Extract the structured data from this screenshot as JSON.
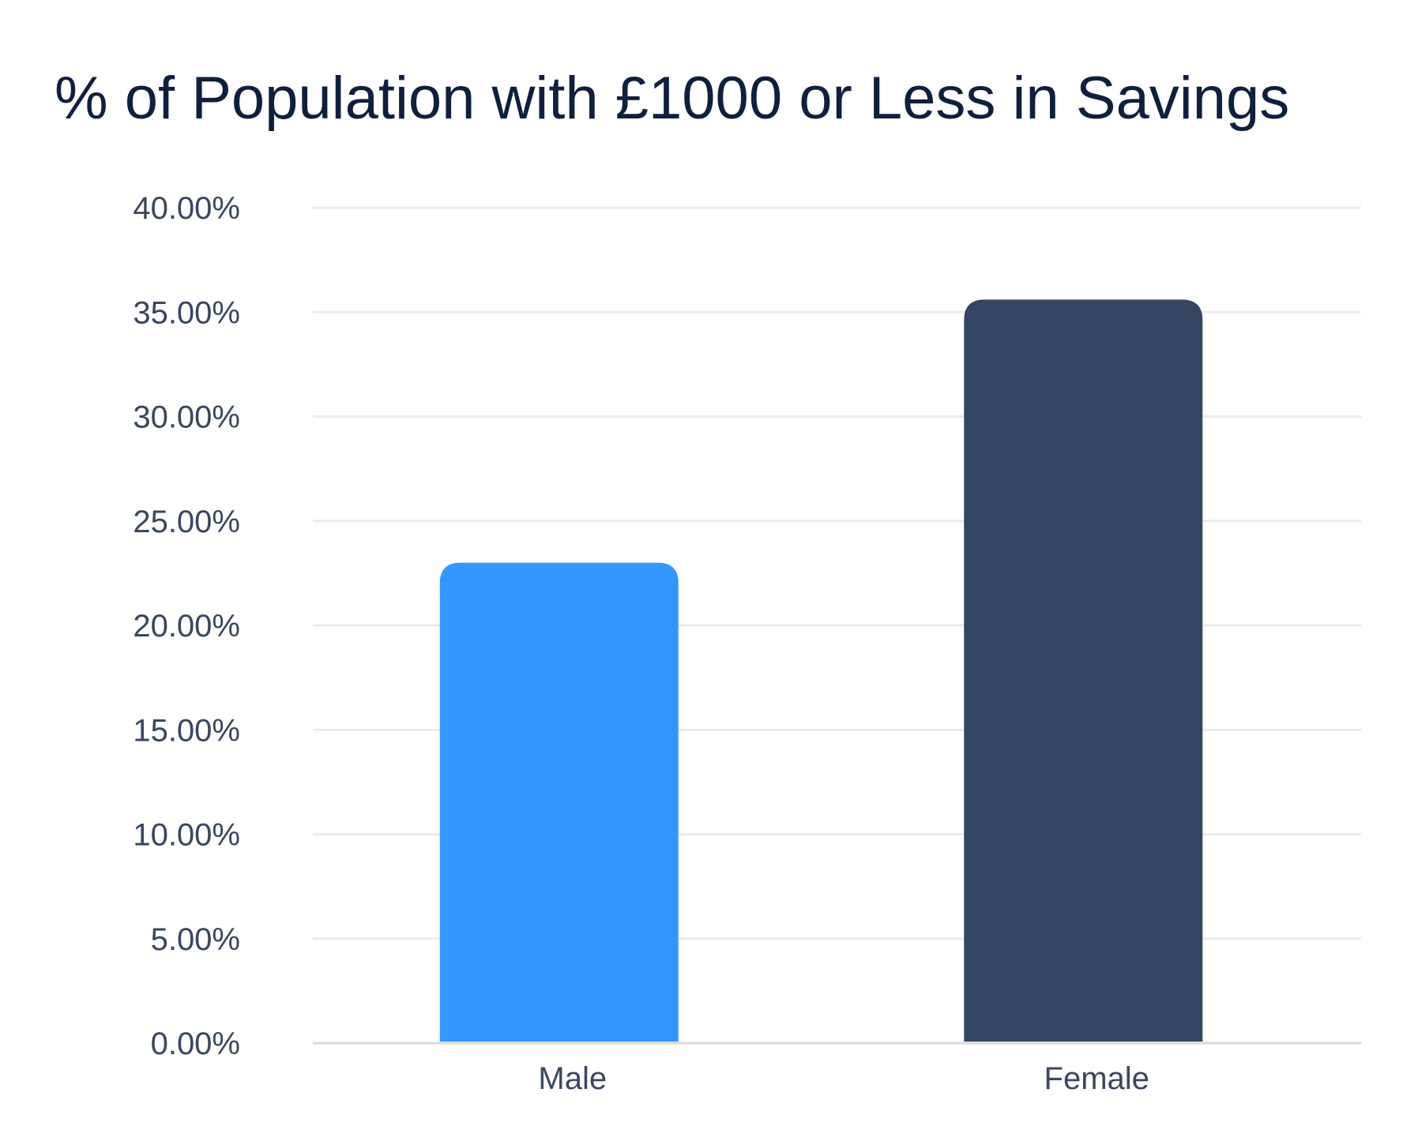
{
  "chart_data": {
    "type": "bar",
    "title": "% of Population with £1000 or Less in Savings",
    "xlabel": "",
    "ylabel": "",
    "categories": [
      "Male",
      "Female"
    ],
    "values": [
      23.0,
      35.6
    ],
    "colors": [
      "#3397ff",
      "#344662"
    ],
    "ylim": [
      0,
      40
    ],
    "yticks": [
      0,
      5,
      10,
      15,
      20,
      25,
      30,
      35,
      40
    ],
    "ytick_labels": [
      "0.00%",
      "5.00%",
      "10.00%",
      "15.00%",
      "20.00%",
      "25.00%",
      "30.00%",
      "35.00%",
      "40.00%"
    ],
    "grid": true,
    "legend": "none"
  }
}
